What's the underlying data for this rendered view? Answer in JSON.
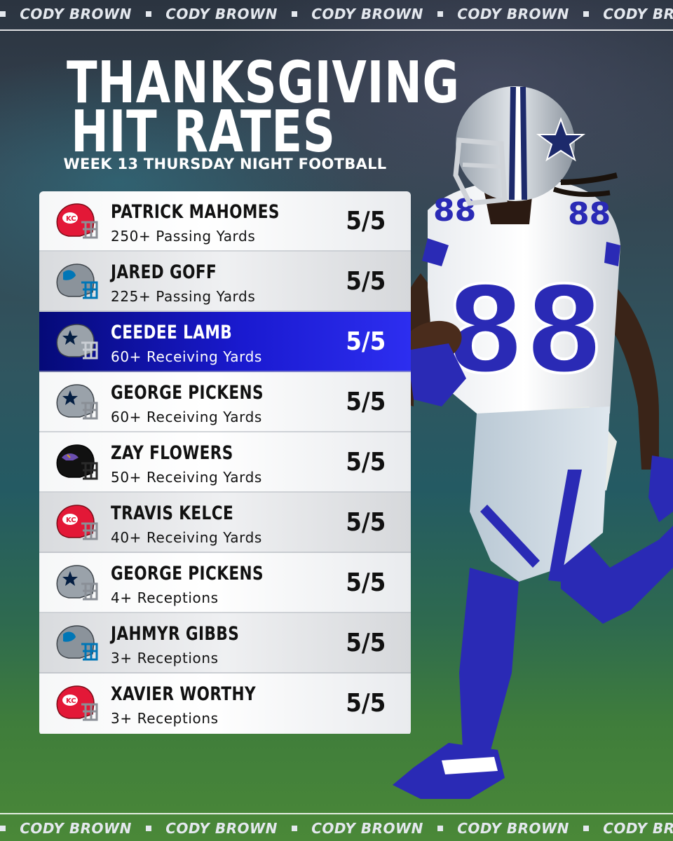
{
  "watermark": {
    "text": "CODY BROWN",
    "repeat_top": [
      "CODY BROWN",
      "CODY BROWN",
      "CODY BROWN",
      "CODY BROWN",
      "CODY BROWN"
    ],
    "repeat_bottom": [
      "CODY BROWN",
      "CODY BROWN",
      "CODY BROWN",
      "CODY BROWN",
      "CODY BROWN"
    ]
  },
  "header": {
    "title_line1": "THANKSGIVING",
    "title_line2": "HIT RATES",
    "subtitle": "WEEK 13 THURSDAY NIGHT FOOTBALL"
  },
  "colors": {
    "highlight": "#1a1ad0",
    "chiefs": "#e31837",
    "lions": "#0076b6",
    "cowboys": "#041e42",
    "ravens": "#241773",
    "jersey_number": "#2a2aa8"
  },
  "rows": [
    {
      "player": "PATRICK MAHOMES",
      "stat": "250+ Passing Yards",
      "rate": "5/5",
      "team_helmet": "chiefs-helmet-icon"
    },
    {
      "player": "JARED GOFF",
      "stat": "225+ Passing Yards",
      "rate": "5/5",
      "team_helmet": "lions-helmet-icon"
    },
    {
      "player": "CEEDEE LAMB",
      "stat": "60+ Receiving Yards",
      "rate": "5/5",
      "team_helmet": "cowboys-helmet-icon",
      "highlighted": true
    },
    {
      "player": "GEORGE PICKENS",
      "stat": "60+ Receiving Yards",
      "rate": "5/5",
      "team_helmet": "cowboys-helmet-icon"
    },
    {
      "player": "ZAY FLOWERS",
      "stat": "50+ Receiving Yards",
      "rate": "5/5",
      "team_helmet": "ravens-helmet-icon"
    },
    {
      "player": "TRAVIS KELCE",
      "stat": "40+ Receiving Yards",
      "rate": "5/5",
      "team_helmet": "chiefs-helmet-icon"
    },
    {
      "player": "GEORGE PICKENS",
      "stat": "4+ Receptions",
      "rate": "5/5",
      "team_helmet": "cowboys-helmet-icon"
    },
    {
      "player": "JAHMYR GIBBS",
      "stat": "3+ Receptions",
      "rate": "5/5",
      "team_helmet": "lions-helmet-icon"
    },
    {
      "player": "XAVIER WORTHY",
      "stat": "3+ Receptions",
      "rate": "5/5",
      "team_helmet": "chiefs-helmet-icon"
    }
  ],
  "hero": {
    "jersey_number": "88"
  }
}
